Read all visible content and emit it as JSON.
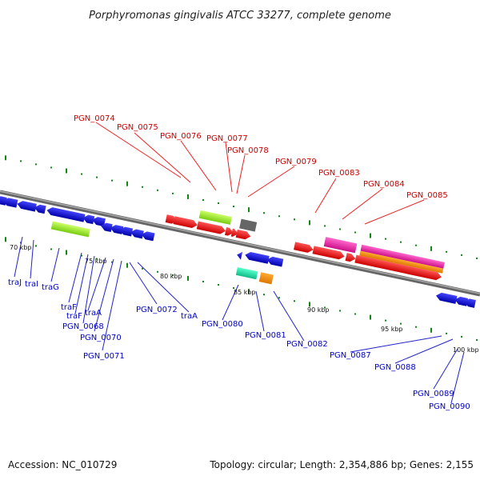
{
  "title": "Porphyromonas gingivalis ATCC 33277, complete genome",
  "footer": {
    "accession": "Accession: NC_010729",
    "summary": "Topology: circular; Length: 2,354,886 bp; Genes: 2,155"
  },
  "ticks": [
    "70 kbp",
    "75 kbp",
    "80 kbp",
    "85 kbp",
    "90 kbp",
    "95 kbp",
    "100 kbp"
  ],
  "genes_top": [
    "PGN_0074",
    "PGN_0075",
    "PGN_0076",
    "PGN_0077",
    "PGN_0078",
    "PGN_0079",
    "PGN_0083",
    "PGN_0084",
    "PGN_0085"
  ],
  "genes_bottom": [
    "traJ",
    "traI",
    "traG",
    "traF",
    "traF",
    "traA",
    "PGN_0068",
    "PGN_0070",
    "PGN_0071",
    "PGN_0072",
    "traA",
    "PGN_0080",
    "PGN_0081",
    "PGN_0082",
    "PGN_0087",
    "PGN_0088",
    "PGN_0089",
    "PGN_0090"
  ],
  "colors": {
    "forward_gene": "#ff0000",
    "reverse_gene": "#0000ee",
    "rna_green": "#99ee22",
    "pink": "#ee22aa",
    "orange": "#ff8800",
    "teal": "#22ddaa",
    "gray": "#666666",
    "backbone": "#888888",
    "tick": "#118811"
  }
}
